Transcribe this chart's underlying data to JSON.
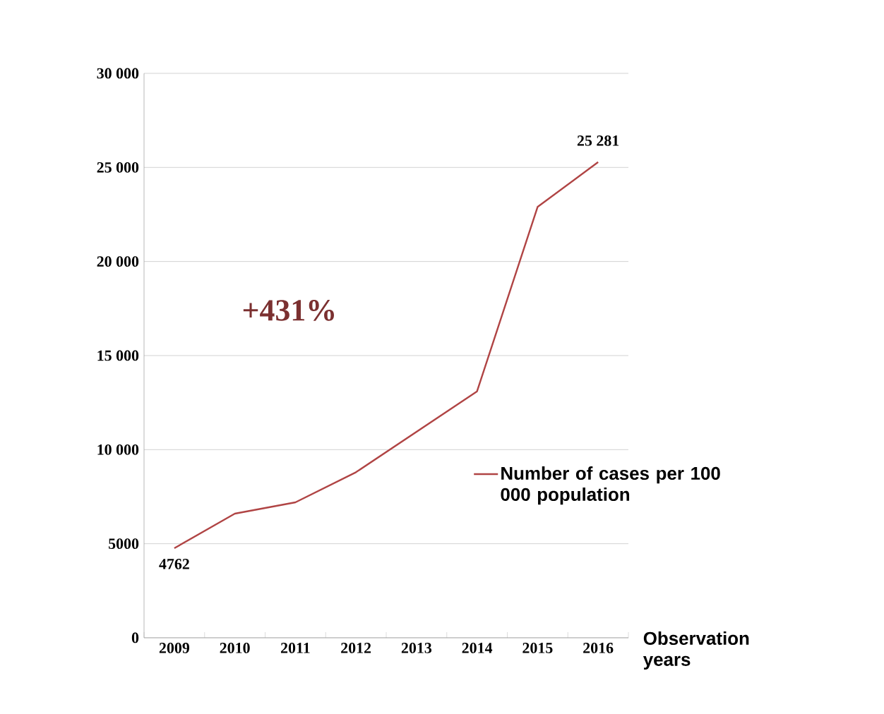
{
  "chart_data": {
    "type": "line",
    "categories": [
      "2009",
      "2010",
      "2011",
      "2012",
      "2013",
      "2014",
      "2015",
      "2016"
    ],
    "series": [
      {
        "name": "Number of cases per 100 000 population",
        "color": "#b04444",
        "values": [
          4762,
          6600,
          7200,
          8800,
          10950,
          13100,
          22900,
          25281
        ],
        "value_labels": [
          "4762",
          null,
          null,
          null,
          null,
          null,
          null,
          "25 281"
        ]
      }
    ],
    "xlabel": "Observation years",
    "ylim": [
      0,
      30000
    ],
    "yticks": [
      0,
      {
        "value": 5000,
        "label": "5000"
      },
      {
        "value": 10000,
        "label": "10 000"
      },
      {
        "value": 15000,
        "label": "15 000"
      },
      {
        "value": 20000,
        "label": "20 000"
      },
      {
        "value": 25000,
        "label": "25 000"
      },
      {
        "value": 30000,
        "label": "30 000"
      }
    ],
    "grid": "y",
    "legend": "right",
    "marker": "none",
    "line_style": "solid",
    "annotations": [
      "+431%"
    ]
  }
}
